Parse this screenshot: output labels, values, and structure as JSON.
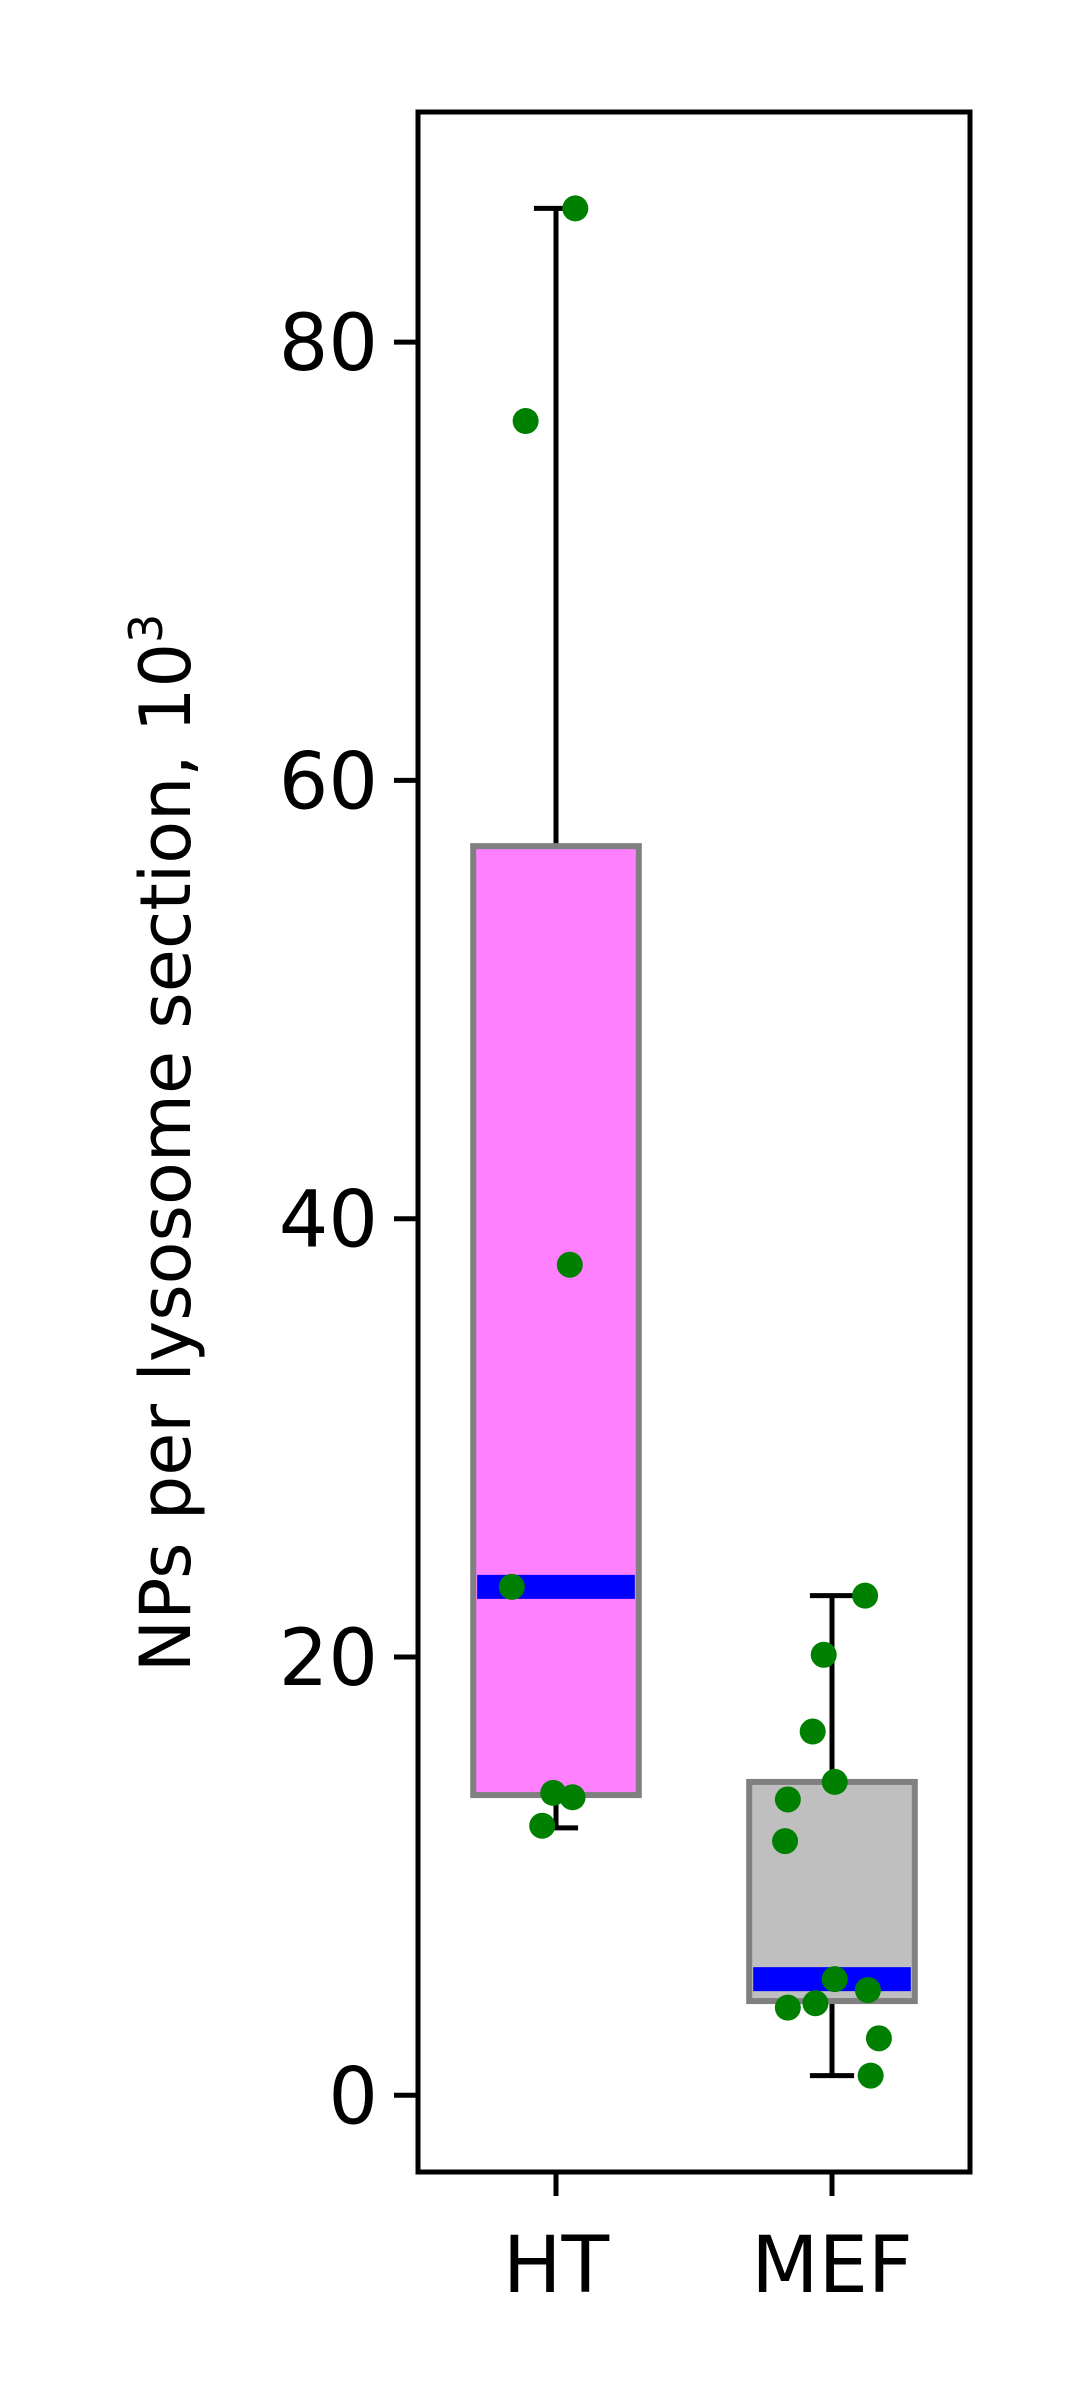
{
  "chart_data": {
    "type": "box",
    "ylabel_main": "NPs per lysosome section, 10",
    "ylabel_sup": "3",
    "categories": [
      "HT",
      "MEF"
    ],
    "ylim": [
      -3.5,
      90.5
    ],
    "yticks": [
      0,
      20,
      40,
      60,
      80
    ],
    "ytick_labels": [
      "0",
      "20",
      "40",
      "60",
      "80"
    ],
    "grid": false,
    "colors": {
      "median": "#0000ff",
      "points": "#008000",
      "whisker": "#000000",
      "box_edge": "#808080"
    },
    "series": [
      {
        "category": "HT",
        "box_color": "#ff80ff",
        "whisker_low": 12.2,
        "q1": 13.7,
        "median": 23.2,
        "q3": 57.0,
        "whisker_high": 86.1,
        "points": [
          {
            "x_offset": 0.07,
            "y": 86.1
          },
          {
            "x_offset": -0.11,
            "y": 76.4
          },
          {
            "x_offset": 0.05,
            "y": 37.9
          },
          {
            "x_offset": -0.16,
            "y": 23.2
          },
          {
            "x_offset": -0.01,
            "y": 13.8
          },
          {
            "x_offset": 0.06,
            "y": 13.6
          },
          {
            "x_offset": -0.05,
            "y": 12.3
          }
        ]
      },
      {
        "category": "MEF",
        "box_color": "#bfbfbf",
        "whisker_low": 0.9,
        "q1": 4.3,
        "median": 5.3,
        "q3": 14.3,
        "whisker_high": 22.8,
        "points": [
          {
            "x_offset": 0.12,
            "y": 22.8
          },
          {
            "x_offset": -0.03,
            "y": 20.1
          },
          {
            "x_offset": -0.07,
            "y": 16.6
          },
          {
            "x_offset": 0.01,
            "y": 14.3
          },
          {
            "x_offset": -0.16,
            "y": 13.5
          },
          {
            "x_offset": -0.17,
            "y": 11.6
          },
          {
            "x_offset": 0.01,
            "y": 5.3
          },
          {
            "x_offset": 0.13,
            "y": 4.8
          },
          {
            "x_offset": -0.06,
            "y": 4.2
          },
          {
            "x_offset": -0.16,
            "y": 4.0
          },
          {
            "x_offset": 0.17,
            "y": 2.6
          },
          {
            "x_offset": 0.14,
            "y": 0.9
          }
        ]
      }
    ]
  }
}
